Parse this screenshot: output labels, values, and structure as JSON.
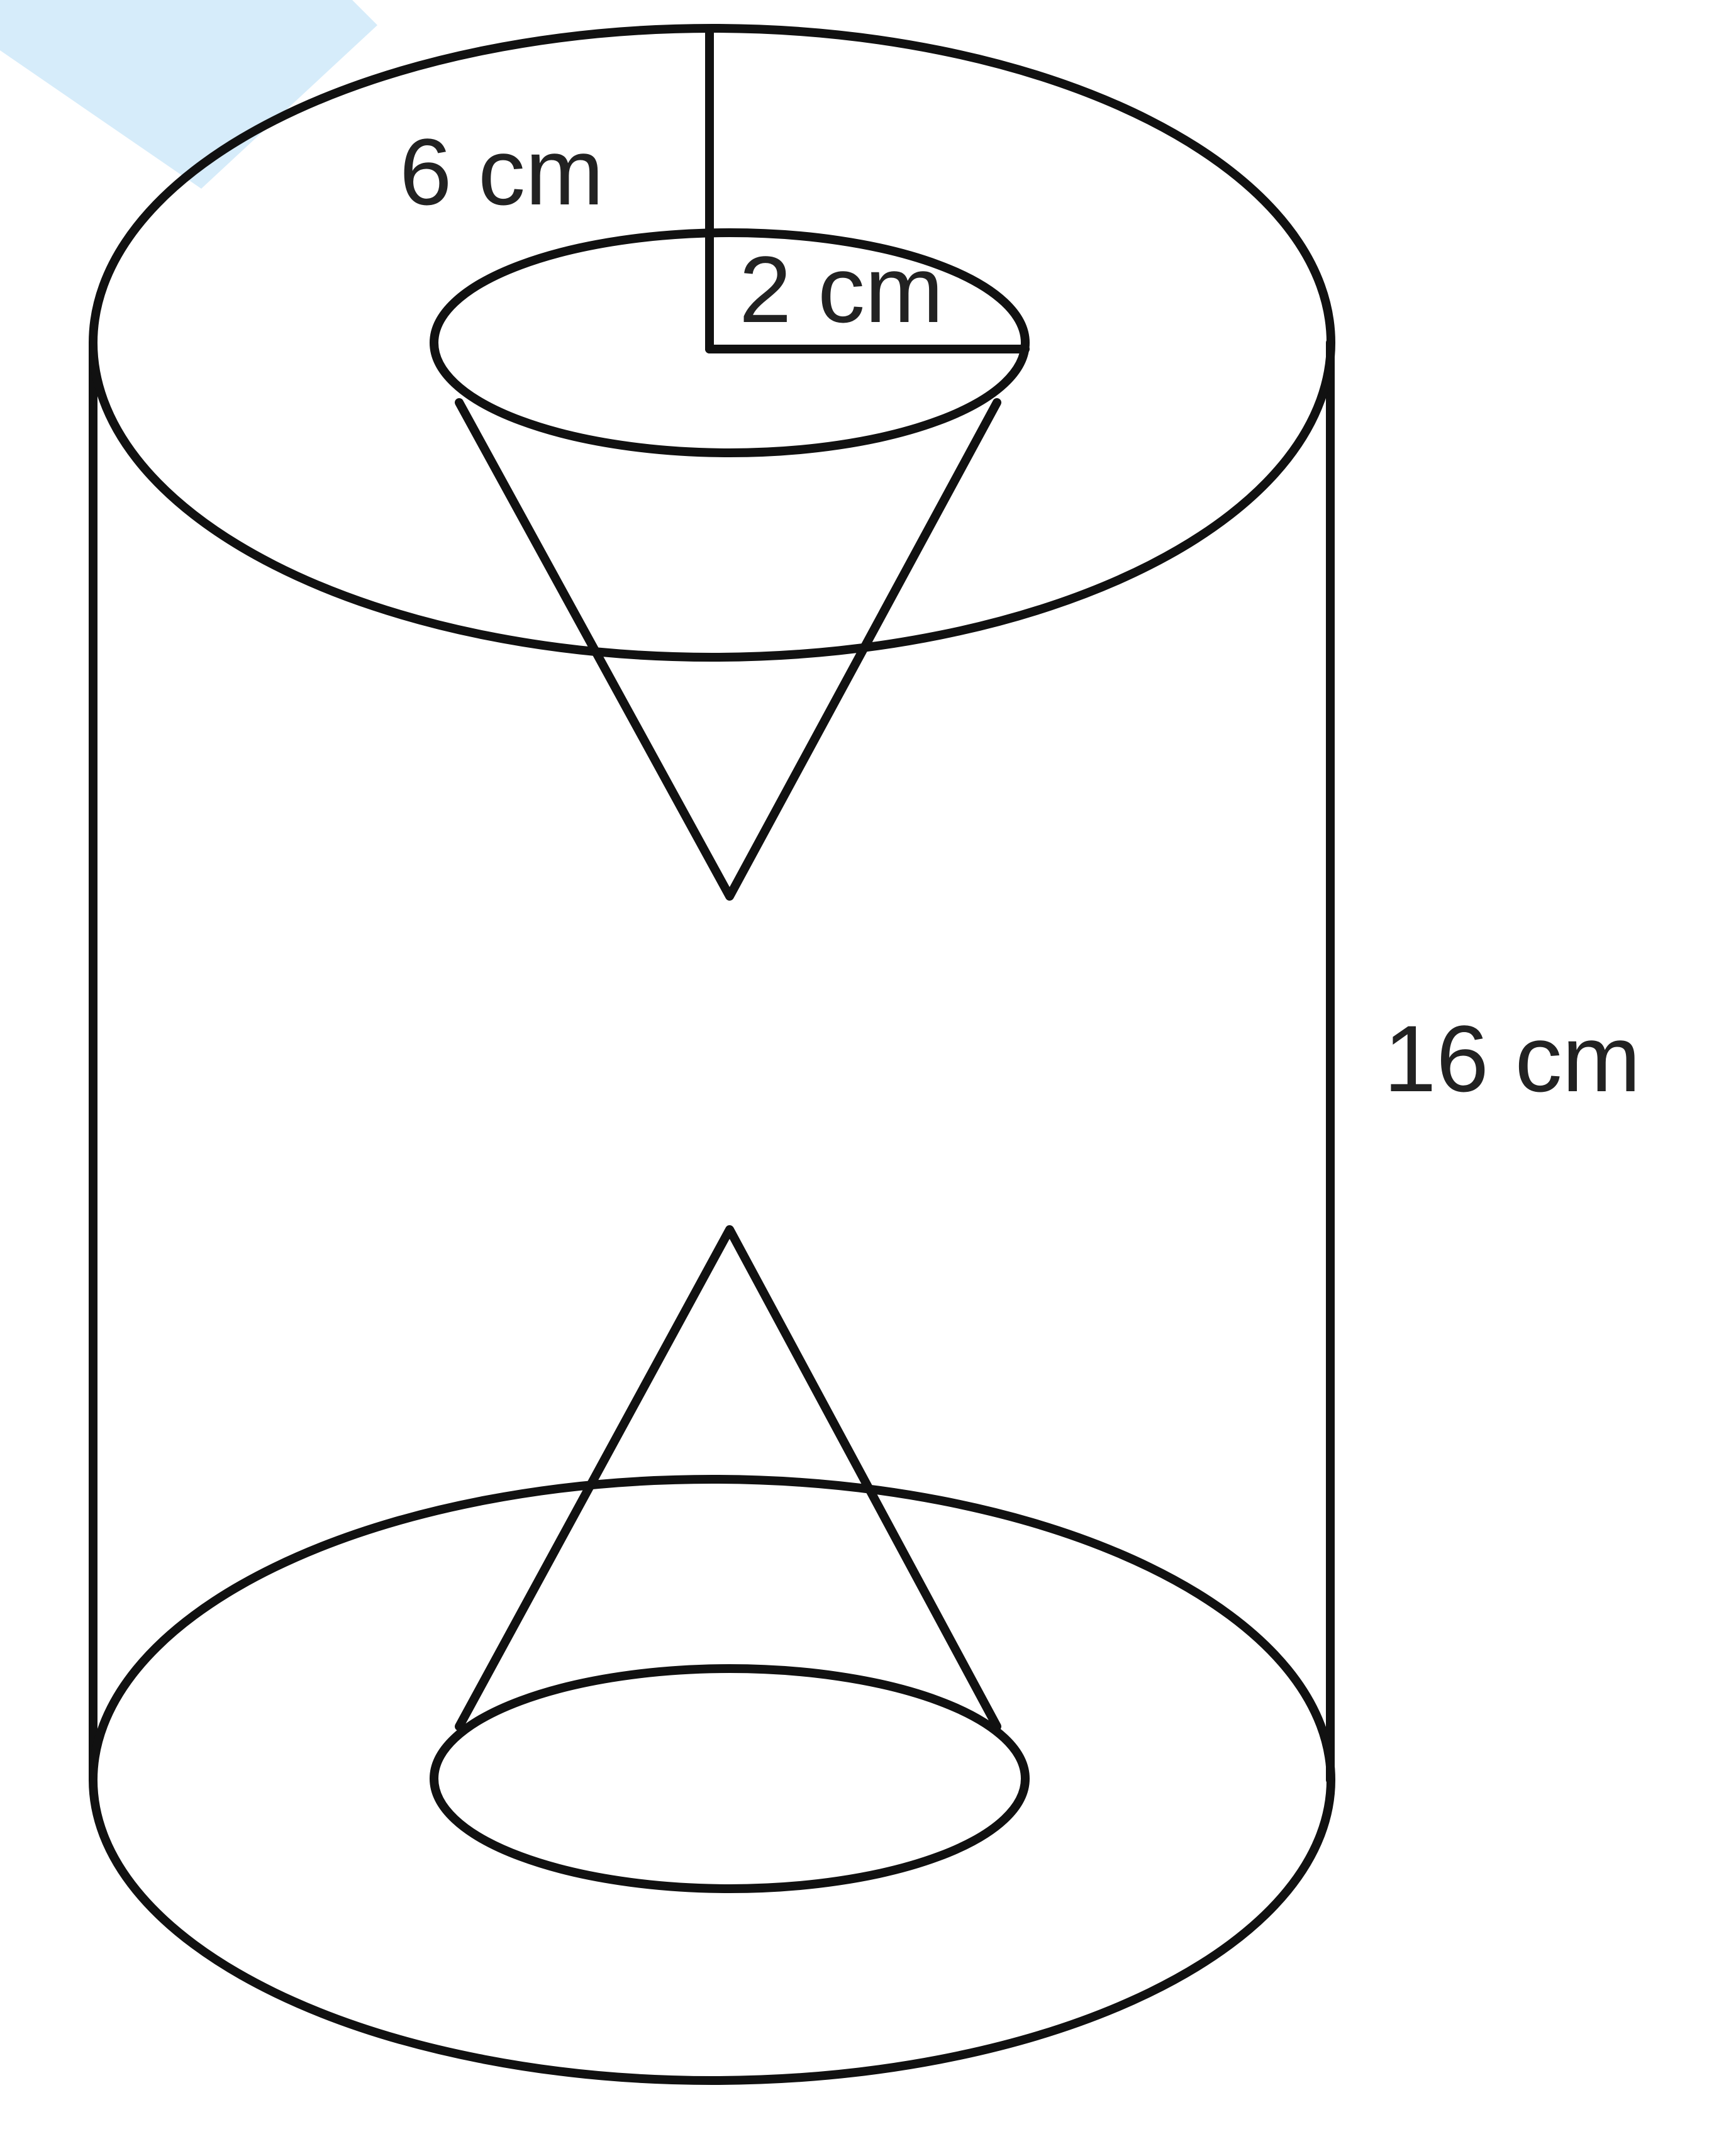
{
  "labels": {
    "outer_radius": "6 cm",
    "inner_radius": "2 cm",
    "height": "16 cm"
  },
  "colors": {
    "stroke": "#111111",
    "text": "#222222",
    "corner_tint": "#bfe3f7",
    "background": "#ffffff"
  }
}
